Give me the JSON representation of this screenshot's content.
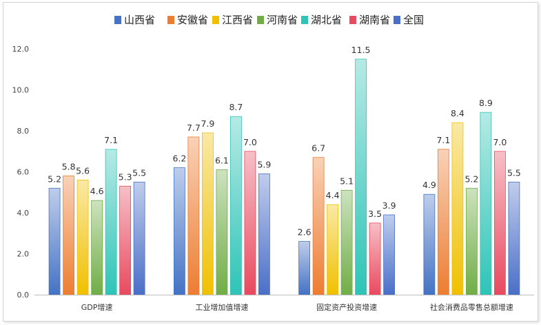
{
  "chart_data": {
    "type": "bar",
    "title": "",
    "xlabel": "",
    "ylabel": "",
    "ylim": [
      0,
      12
    ],
    "yticks": [
      "0.0",
      "2.0",
      "4.0",
      "6.0",
      "8.0",
      "10.0",
      "12.0"
    ],
    "grid": false,
    "legend_position": "top-center",
    "categories": [
      "GDP增速",
      "工业增加值增速",
      "固定资产投资增速",
      "社会消费品零售总额增速"
    ],
    "series": [
      {
        "name": "山西省",
        "color": "#4472c4",
        "values": [
          5.2,
          6.2,
          2.6,
          4.9
        ]
      },
      {
        "name": "安徽省",
        "color": "#ed7d31",
        "values": [
          5.8,
          7.7,
          6.7,
          7.1
        ]
      },
      {
        "name": "江西省",
        "color": "#f0c000",
        "values": [
          5.6,
          7.9,
          4.4,
          8.4
        ]
      },
      {
        "name": "河南省",
        "color": "#70ad47",
        "values": [
          4.6,
          6.1,
          5.1,
          5.2
        ]
      },
      {
        "name": "湖北省",
        "color": "#2ec4b6",
        "values": [
          7.1,
          8.7,
          11.5,
          8.9
        ]
      },
      {
        "name": "湖南省",
        "color": "#e84a5f",
        "values": [
          5.3,
          7.0,
          3.5,
          7.0
        ]
      },
      {
        "name": "全国",
        "color": "#4a6fc8",
        "values": [
          5.5,
          5.9,
          3.9,
          5.5
        ]
      }
    ]
  }
}
